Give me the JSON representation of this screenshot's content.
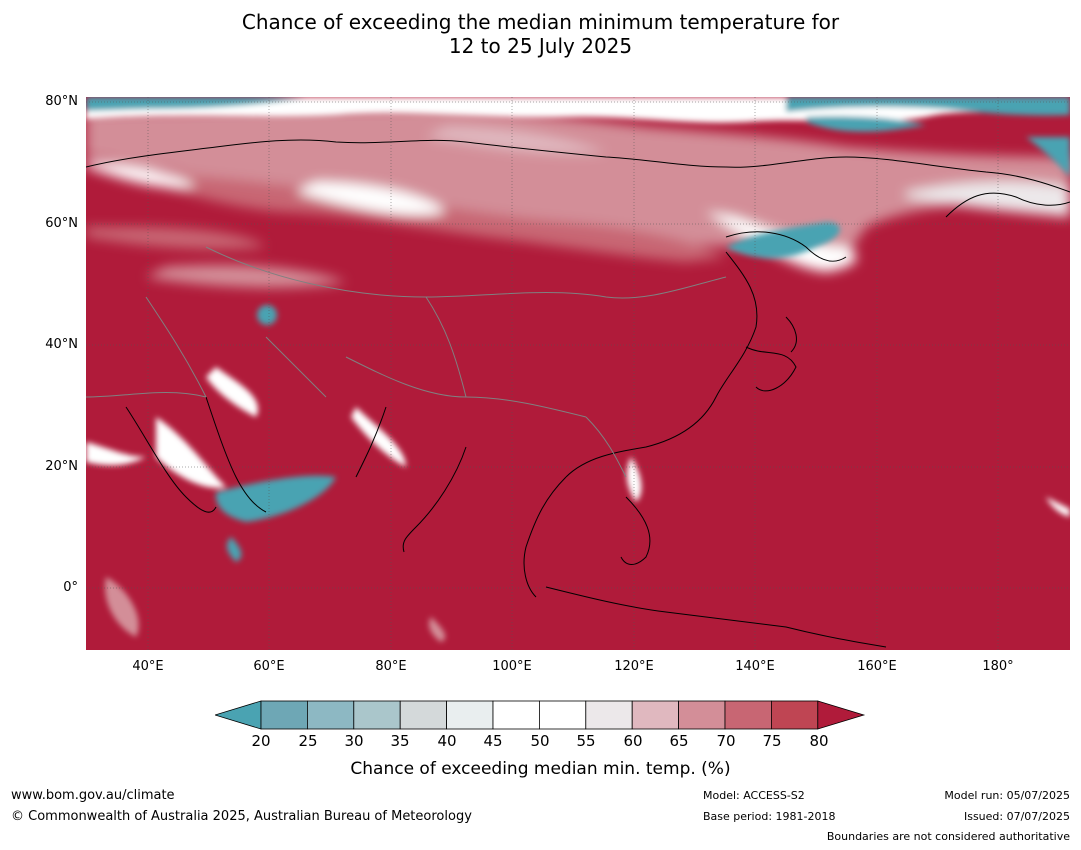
{
  "title": {
    "line1": "Chance of exceeding the median minimum temperature for",
    "line2": "12 to 25 July 2025"
  },
  "map": {
    "latitude_labels": [
      "80°N",
      "60°N",
      "40°N",
      "20°N",
      "0°"
    ],
    "longitude_labels": [
      "40°E",
      "60°E",
      "80°E",
      "100°E",
      "120°E",
      "140°E",
      "160°E",
      "180°"
    ],
    "colors": {
      "high_chance": "#b01b3a",
      "low_chance": "#4aa3b2",
      "neutral": "#ffffff",
      "coastline": "#000000",
      "border": "#808080"
    }
  },
  "colorbar": {
    "ticks": [
      "20",
      "25",
      "30",
      "35",
      "40",
      "45",
      "50",
      "55",
      "60",
      "65",
      "70",
      "75",
      "80"
    ],
    "colors": [
      "#4aa3b2",
      "#6ea7b5",
      "#8db8c3",
      "#aac6cb",
      "#d4d9da",
      "#e9eeef",
      "#ffffff",
      "#ffffff",
      "#ece8ea",
      "#e0b8bf",
      "#d38e98",
      "#c86673",
      "#bf4553",
      "#b01b3a"
    ],
    "label": "Chance of exceeding median min. temp. (%)"
  },
  "footer": {
    "website": "www.bom.gov.au/climate",
    "copyright": "© Commonwealth of Australia 2025, Australian Bureau of Meteorology",
    "model": "Model: ACCESS-S2",
    "base_period": "Base period: 1981-2018",
    "model_run": "Model run: 05/07/2025",
    "issued": "Issued: 07/07/2025",
    "disclaimer": "Boundaries are not considered authoritative"
  }
}
